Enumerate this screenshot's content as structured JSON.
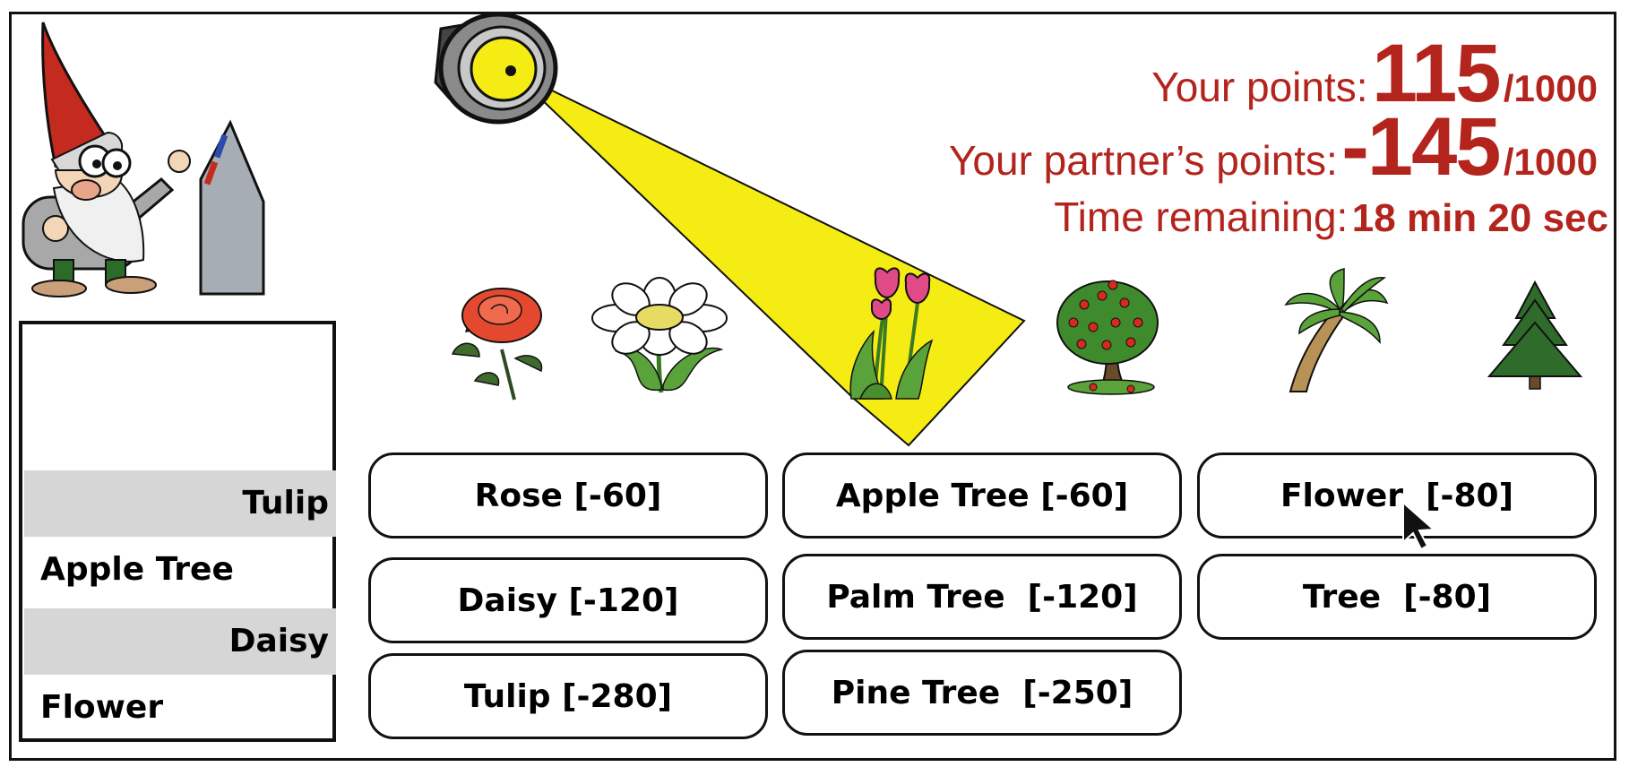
{
  "scores": {
    "your_points_label": "Your points:",
    "your_points_value": "115",
    "your_points_total": "/1000",
    "partner_points_label": "Your partner’s points:",
    "partner_points_value": "-145",
    "partner_points_total": "/1000",
    "time_label": "Time remaining:",
    "time_value": "18 min 20 sec"
  },
  "spotlight_target": "tulip",
  "pictures": [
    "rose",
    "daisy",
    "tulip",
    "apple-tree",
    "palm-tree",
    "pine-tree"
  ],
  "history": [
    {
      "label": "Tulip",
      "side": "right"
    },
    {
      "label": "Apple Tree",
      "side": "left"
    },
    {
      "label": "Daisy",
      "side": "right"
    },
    {
      "label": "Flower",
      "side": "left"
    }
  ],
  "options": [
    [
      "Rose [-60]",
      "Apple Tree [-60]",
      "Flower  [-80]"
    ],
    [
      "Daisy [-120]",
      "Palm Tree  [-120]",
      "Tree  [-80]"
    ],
    [
      "Tulip [-280]",
      "Pine Tree  [-250]"
    ]
  ],
  "colors": {
    "score_red": "#b3241d",
    "spotlight_yellow": "#f5ec14",
    "history_highlight": "#d6d6d6"
  }
}
